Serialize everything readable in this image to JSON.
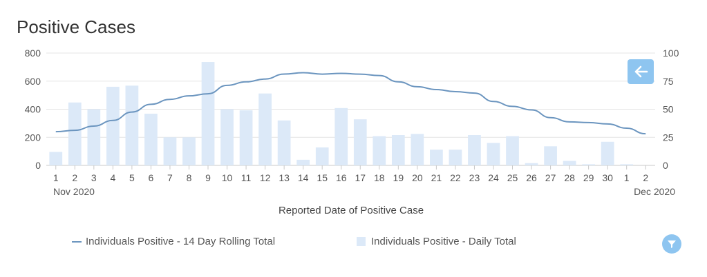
{
  "header": {
    "title": "Positive Cases"
  },
  "chart_data": {
    "type": "bar+line",
    "title": "Positive Cases",
    "xlabel": "Reported Date of Positive Case",
    "categories": [
      "1",
      "2",
      "3",
      "4",
      "5",
      "6",
      "7",
      "8",
      "9",
      "10",
      "11",
      "12",
      "13",
      "14",
      "15",
      "16",
      "17",
      "18",
      "19",
      "20",
      "21",
      "22",
      "23",
      "24",
      "25",
      "26",
      "27",
      "28",
      "29",
      "30",
      "1",
      "2"
    ],
    "month_labels": {
      "start": "Nov 2020",
      "end": "Dec 2020"
    },
    "y_left": {
      "ylim": [
        0,
        800
      ],
      "ticks": [
        "0",
        "200",
        "400",
        "600",
        "800"
      ]
    },
    "y_right": {
      "ylim": [
        0,
        100
      ],
      "ticks": [
        "0",
        "25",
        "50",
        "75",
        "100"
      ]
    },
    "series": [
      {
        "name": "Individuals Positive - 14 Day Rolling Total",
        "type": "line",
        "axis": "left",
        "color": "#6b95bf",
        "values": [
          240,
          250,
          280,
          320,
          380,
          435,
          470,
          495,
          510,
          570,
          595,
          615,
          650,
          660,
          650,
          655,
          650,
          640,
          595,
          560,
          540,
          525,
          515,
          455,
          420,
          395,
          340,
          310,
          305,
          295,
          265,
          225
        ]
      },
      {
        "name": "Individuals Positive - Daily Total",
        "type": "bar",
        "axis": "right",
        "color": "#dce9f8",
        "values": [
          12,
          56,
          50,
          70,
          71,
          46,
          25,
          25,
          92,
          50,
          49,
          64,
          40,
          5,
          16,
          51,
          41,
          26,
          27,
          28,
          14,
          14,
          27,
          20,
          26,
          2,
          17,
          4,
          1,
          21,
          1,
          0
        ]
      }
    ]
  },
  "legend": {
    "line_label": "Individuals Positive - 14 Day Rolling Total",
    "bar_label": "Individuals Positive - Daily Total"
  },
  "controls": {
    "back_icon": "arrow-left-icon",
    "filter_icon": "filter-icon"
  }
}
